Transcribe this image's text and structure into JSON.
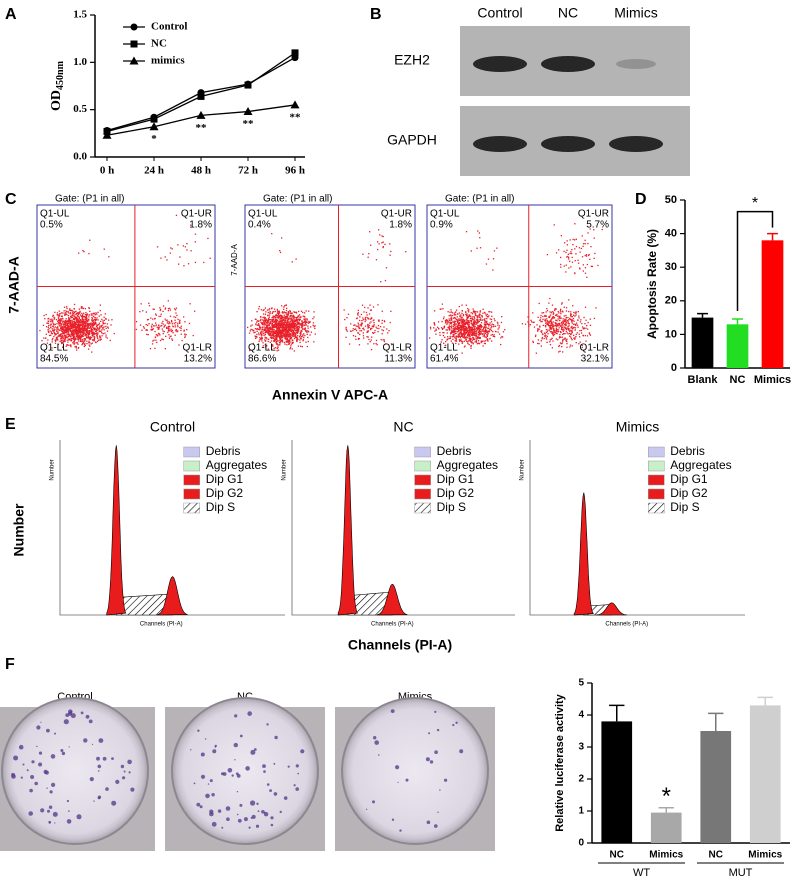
{
  "chart_data": [
    {
      "type": "line",
      "panel": "A",
      "y_label": "OD",
      "y_label_sub": "450nm",
      "categories": [
        "0 h",
        "24 h",
        "48 h",
        "72 h",
        "96 h"
      ],
      "series": [
        {
          "name": "Control",
          "color": "#000000",
          "marker": "circle",
          "values": [
            0.28,
            0.42,
            0.68,
            0.77,
            1.05
          ]
        },
        {
          "name": "NC",
          "color": "#000000",
          "marker": "square",
          "values": [
            0.27,
            0.4,
            0.64,
            0.76,
            1.1
          ]
        },
        {
          "name": "mimics",
          "color": "#000000",
          "marker": "triangle",
          "values": [
            0.23,
            0.32,
            0.44,
            0.48,
            0.55
          ],
          "value_annotations": [
            null,
            "*",
            "**",
            "**",
            "**"
          ]
        }
      ],
      "ylim": [
        0,
        1.5
      ],
      "yticks": [
        {
          "value": 0,
          "label": "0.0"
        },
        0.5,
        {
          "value": 1,
          "label": "1.0"
        },
        1.5
      ]
    },
    {
      "type": "bar",
      "panel": "D",
      "y_label": "Apoptosis Rate (%)",
      "categories": [
        "Blank",
        "NC",
        "Mimics"
      ],
      "values": [
        15,
        13,
        38
      ],
      "errors": [
        1.2,
        1.6,
        2
      ],
      "colors": [
        "#000000",
        "#22dd22",
        "#ff0000"
      ],
      "value_annotations": [
        null,
        null,
        "*"
      ],
      "annotation_style": "bracket",
      "ylim": [
        0,
        50
      ],
      "yticks": [
        0,
        10,
        20,
        30,
        40,
        50
      ]
    },
    {
      "type": "bar",
      "y_label": "Relative luciferase activity",
      "categories": [
        "NC",
        "Mimics",
        "NC",
        "Mimics"
      ],
      "groups": [
        "WT",
        "MUT"
      ],
      "values": [
        3.8,
        0.95,
        3.5,
        4.3
      ],
      "errors": [
        0.5,
        0.15,
        0.55,
        0.25
      ],
      "colors": [
        "#000000",
        "#a8a8a8",
        "#777777",
        "#cfcfcf"
      ],
      "value_annotations": [
        null,
        "*",
        null,
        null
      ],
      "annotation_style": "above",
      "ylim": [
        0,
        5
      ],
      "yticks": [
        0,
        1,
        2,
        3,
        4,
        5
      ]
    }
  ],
  "blot": {
    "panel": "B",
    "lanes": [
      "Control",
      "NC",
      "Mimics"
    ],
    "rows": [
      "EZH2",
      "GAPDH"
    ]
  },
  "flow": {
    "panel": "C",
    "y_label": "7-AAD-A",
    "x_label": "Annexin V APC-A",
    "plots": [
      {
        "gate": "Gate: (P1 in all)",
        "quadrants": [
          "Q1-UL",
          "Q1-UR",
          "Q1-LL",
          "Q1-LR"
        ],
        "percents": [
          "0.5%",
          "1.8%",
          "84.5%",
          "13.2%"
        ]
      },
      {
        "gate": "Gate: (P1 in all)",
        "quadrants": [
          "Q1-UL",
          "Q1-UR",
          "Q1-LL",
          "Q1-LR"
        ],
        "percents": [
          "0.4%",
          "1.8%",
          "86.6%",
          "11.3%"
        ]
      },
      {
        "gate": "Gate: (P1 in all)",
        "quadrants": [
          "Q1-UL",
          "Q1-UR",
          "Q1-LL",
          "Q1-LR"
        ],
        "percents": [
          "0.9%",
          "5.7%",
          "61.4%",
          "32.1%"
        ]
      }
    ]
  },
  "cell_cycle": {
    "panel": "E",
    "y_label": "Number",
    "x_label": "Channels (PI-A)",
    "titles": [
      "Control",
      "NC",
      "Mimics"
    ],
    "legend": [
      "Debris",
      "Aggregates",
      "Dip G1",
      "Dip G2",
      "Dip S"
    ]
  },
  "colony": {
    "panel": "F",
    "titles": [
      "Control",
      "NC",
      "Mimics"
    ]
  }
}
